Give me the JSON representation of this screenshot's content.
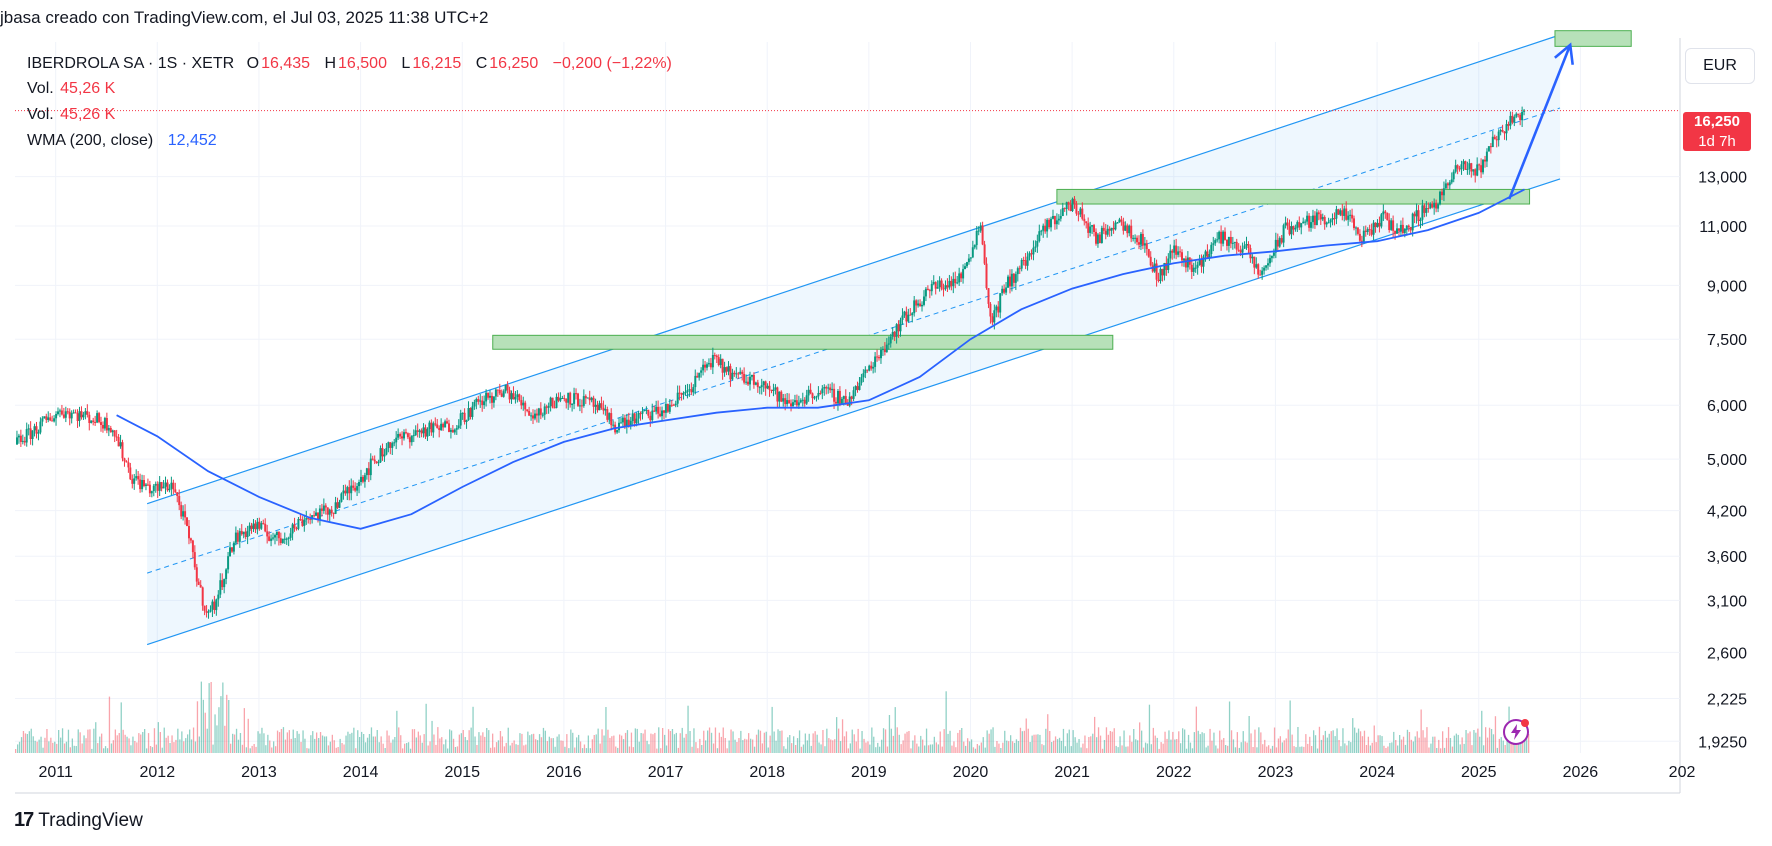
{
  "header": {
    "text": "jbasa creado con TradingView.com, el Jul 03, 2025 11:38 UTC+2"
  },
  "legend": {
    "symbol": "IBERDROLA SA · 1S · XETR",
    "o_label": "O",
    "o_val": "16,435",
    "h_label": "H",
    "h_val": "16,500",
    "l_label": "L",
    "l_val": "16,215",
    "c_label": "C",
    "c_val": "16,250",
    "change": "−0,200 (−1,22%)",
    "vol1_label": "Vol.",
    "vol1_val": "45,26 K",
    "vol2_label": "Vol.",
    "vol2_val": "45,26 K",
    "wma_label": "WMA (200, close)",
    "wma_val": "12,452"
  },
  "currency_button": "EUR",
  "current_price": {
    "price": "16,250",
    "countdown": "1d 7h"
  },
  "brand": {
    "icon": "17",
    "name": "TradingView"
  },
  "colors": {
    "up": "#089981",
    "down": "#f23645",
    "wma": "#2962ff",
    "channel": "#2196f3",
    "zone_fill": "#b7e1b9",
    "zone_stroke": "#4caf50"
  },
  "chart_data": {
    "type": "candlestick",
    "interval": "weekly",
    "ylog": true,
    "ylim": [
      1.85,
      20.5
    ],
    "xlim": [
      2010.6,
      2026.98
    ],
    "x_ticks": [
      "2011",
      "2012",
      "2013",
      "2014",
      "2015",
      "2016",
      "2017",
      "2018",
      "2019",
      "2020",
      "2021",
      "2022",
      "2023",
      "2024",
      "2025",
      "2026",
      "202"
    ],
    "y_ticks": [
      "13,000",
      "11,000",
      "9,000",
      "7,500",
      "6,000",
      "5,000",
      "4,200",
      "3,600",
      "3,100",
      "2,600",
      "2,225",
      "1,9250"
    ],
    "price_path": [
      [
        2010.6,
        5.25
      ],
      [
        2010.85,
        5.6
      ],
      [
        2011.05,
        5.9
      ],
      [
        2011.35,
        5.75
      ],
      [
        2011.55,
        5.6
      ],
      [
        2011.75,
        4.7
      ],
      [
        2011.95,
        4.5
      ],
      [
        2012.15,
        4.6
      ],
      [
        2012.3,
        3.9
      ],
      [
        2012.42,
        3.2
      ],
      [
        2012.5,
        2.95
      ],
      [
        2012.58,
        3.1
      ],
      [
        2012.75,
        3.8
      ],
      [
        2012.95,
        4.0
      ],
      [
        2013.2,
        3.8
      ],
      [
        2013.45,
        4.1
      ],
      [
        2013.7,
        4.2
      ],
      [
        2014.0,
        4.7
      ],
      [
        2014.3,
        5.3
      ],
      [
        2014.6,
        5.5
      ],
      [
        2014.9,
        5.6
      ],
      [
        2015.2,
        6.1
      ],
      [
        2015.45,
        6.3
      ],
      [
        2015.7,
        5.8
      ],
      [
        2016.0,
        6.2
      ],
      [
        2016.3,
        6.0
      ],
      [
        2016.5,
        5.6
      ],
      [
        2016.8,
        5.8
      ],
      [
        2017.0,
        5.9
      ],
      [
        2017.25,
        6.4
      ],
      [
        2017.45,
        7.0
      ],
      [
        2017.7,
        6.6
      ],
      [
        2017.95,
        6.5
      ],
      [
        2018.2,
        6.0
      ],
      [
        2018.5,
        6.3
      ],
      [
        2018.8,
        6.1
      ],
      [
        2019.0,
        6.8
      ],
      [
        2019.3,
        7.9
      ],
      [
        2019.6,
        8.9
      ],
      [
        2019.9,
        9.2
      ],
      [
        2020.1,
        11.1
      ],
      [
        2020.2,
        7.9
      ],
      [
        2020.35,
        9.0
      ],
      [
        2020.55,
        9.8
      ],
      [
        2020.75,
        11.0
      ],
      [
        2021.0,
        11.9
      ],
      [
        2021.25,
        10.5
      ],
      [
        2021.45,
        11.3
      ],
      [
        2021.7,
        10.4
      ],
      [
        2021.85,
        9.2
      ],
      [
        2022.0,
        10.2
      ],
      [
        2022.2,
        9.5
      ],
      [
        2022.45,
        10.6
      ],
      [
        2022.7,
        10.2
      ],
      [
        2022.85,
        9.3
      ],
      [
        2023.1,
        10.9
      ],
      [
        2023.45,
        11.3
      ],
      [
        2023.7,
        11.4
      ],
      [
        2023.85,
        10.5
      ],
      [
        2024.05,
        11.3
      ],
      [
        2024.25,
        10.8
      ],
      [
        2024.45,
        11.6
      ],
      [
        2024.6,
        12.0
      ],
      [
        2024.8,
        13.4
      ],
      [
        2025.0,
        13.3
      ],
      [
        2025.15,
        14.8
      ],
      [
        2025.3,
        15.6
      ],
      [
        2025.45,
        16.25
      ]
    ],
    "wma_path": [
      [
        2011.6,
        5.8
      ],
      [
        2012.0,
        5.4
      ],
      [
        2012.5,
        4.8
      ],
      [
        2013.0,
        4.4
      ],
      [
        2013.5,
        4.1
      ],
      [
        2014.0,
        3.95
      ],
      [
        2014.5,
        4.15
      ],
      [
        2015.0,
        4.55
      ],
      [
        2015.5,
        4.95
      ],
      [
        2016.0,
        5.3
      ],
      [
        2016.5,
        5.55
      ],
      [
        2017.0,
        5.7
      ],
      [
        2017.5,
        5.85
      ],
      [
        2018.0,
        5.95
      ],
      [
        2018.5,
        5.95
      ],
      [
        2019.0,
        6.1
      ],
      [
        2019.5,
        6.6
      ],
      [
        2020.0,
        7.5
      ],
      [
        2020.5,
        8.3
      ],
      [
        2021.0,
        8.9
      ],
      [
        2021.5,
        9.35
      ],
      [
        2022.0,
        9.7
      ],
      [
        2022.5,
        9.95
      ],
      [
        2023.0,
        10.1
      ],
      [
        2023.5,
        10.3
      ],
      [
        2024.0,
        10.45
      ],
      [
        2024.5,
        10.85
      ],
      [
        2025.0,
        11.5
      ],
      [
        2025.45,
        12.45
      ]
    ],
    "channel": {
      "x0": 2011.9,
      "x1": 2025.8,
      "upper": [
        4.3,
        21.0
      ],
      "mid": [
        3.4,
        16.4
      ],
      "lower": [
        2.67,
        12.9
      ]
    },
    "zones": [
      {
        "x0": 2015.3,
        "x1": 2021.4,
        "y_low": 7.25,
        "y_high": 7.6
      },
      {
        "x0": 2020.85,
        "x1": 2025.5,
        "y_low": 11.85,
        "y_high": 12.45
      },
      {
        "x0": 2025.75,
        "x1": 2026.5,
        "y_low": 20.2,
        "y_high": 21.3
      }
    ],
    "arrow": {
      "from": [
        2025.3,
        12.05
      ],
      "to": [
        2025.9,
        20.3
      ]
    },
    "current_price": 16.25
  }
}
